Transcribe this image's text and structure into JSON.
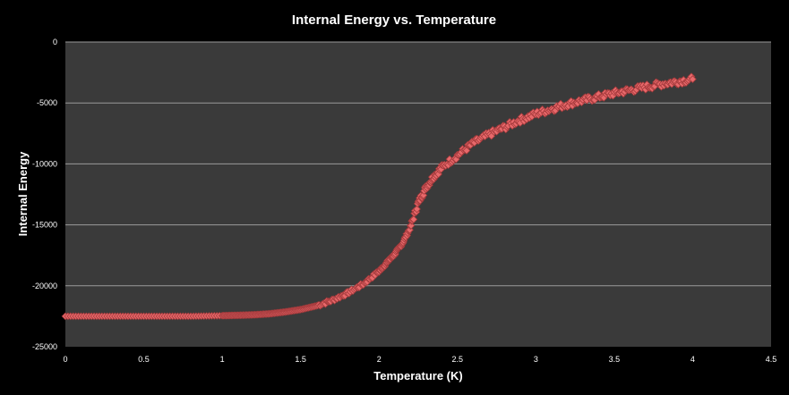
{
  "chart_data": {
    "type": "scatter",
    "title": "Internal Energy vs. Temperature",
    "xlabel": "Temperature (K)",
    "ylabel": "Internal Energy",
    "xlim": [
      0,
      4.5
    ],
    "ylim": [
      -25000,
      0
    ],
    "xticks": [
      0,
      0.5,
      1,
      1.5,
      2,
      2.5,
      3,
      3.5,
      4,
      4.5
    ],
    "xtick_labels": [
      "0",
      "0.5",
      "1",
      "1.5",
      "2",
      "2.5",
      "3",
      "3.5",
      "4",
      "4.5"
    ],
    "yticks": [
      0,
      -5000,
      -10000,
      -15000,
      -20000,
      -25000
    ],
    "ytick_labels": [
      "0",
      "-5000",
      "-10000",
      "-15000",
      "-20000",
      "-25000"
    ],
    "grid": "horizontal",
    "legend": "none",
    "marker": "diamond",
    "colors": {
      "background": "#000000",
      "plot_area": "#3a3a3a",
      "gridline": "#9a9a9a",
      "marker_fill": "#e8696b",
      "marker_stroke": "#a53a3c",
      "text": "#ffffff"
    },
    "series": [
      {
        "points": [
          [
            0.0,
            -22500
          ],
          [
            0.2,
            -22500
          ],
          [
            0.4,
            -22500
          ],
          [
            0.6,
            -22500
          ],
          [
            0.8,
            -22500
          ],
          [
            1.0,
            -22450
          ],
          [
            1.1,
            -22420
          ],
          [
            1.2,
            -22380
          ],
          [
            1.3,
            -22300
          ],
          [
            1.4,
            -22150
          ],
          [
            1.5,
            -21950
          ],
          [
            1.6,
            -21650
          ],
          [
            1.7,
            -21200
          ],
          [
            1.8,
            -20600
          ],
          [
            1.9,
            -19850
          ],
          [
            2.0,
            -18800
          ],
          [
            2.05,
            -18100
          ],
          [
            2.1,
            -17400
          ],
          [
            2.15,
            -16500
          ],
          [
            2.2,
            -15200
          ],
          [
            2.25,
            -13200
          ],
          [
            2.3,
            -11900
          ],
          [
            2.35,
            -11000
          ],
          [
            2.4,
            -10300
          ],
          [
            2.5,
            -9300
          ],
          [
            2.6,
            -8300
          ],
          [
            2.7,
            -7600
          ],
          [
            2.8,
            -7000
          ],
          [
            2.9,
            -6400
          ],
          [
            3.0,
            -5900
          ],
          [
            3.1,
            -5500
          ],
          [
            3.2,
            -5100
          ],
          [
            3.3,
            -4800
          ],
          [
            3.4,
            -4500
          ],
          [
            3.5,
            -4200
          ],
          [
            3.6,
            -3950
          ],
          [
            3.7,
            -3700
          ],
          [
            3.8,
            -3450
          ],
          [
            3.9,
            -3250
          ],
          [
            4.0,
            -3050
          ]
        ]
      }
    ]
  }
}
